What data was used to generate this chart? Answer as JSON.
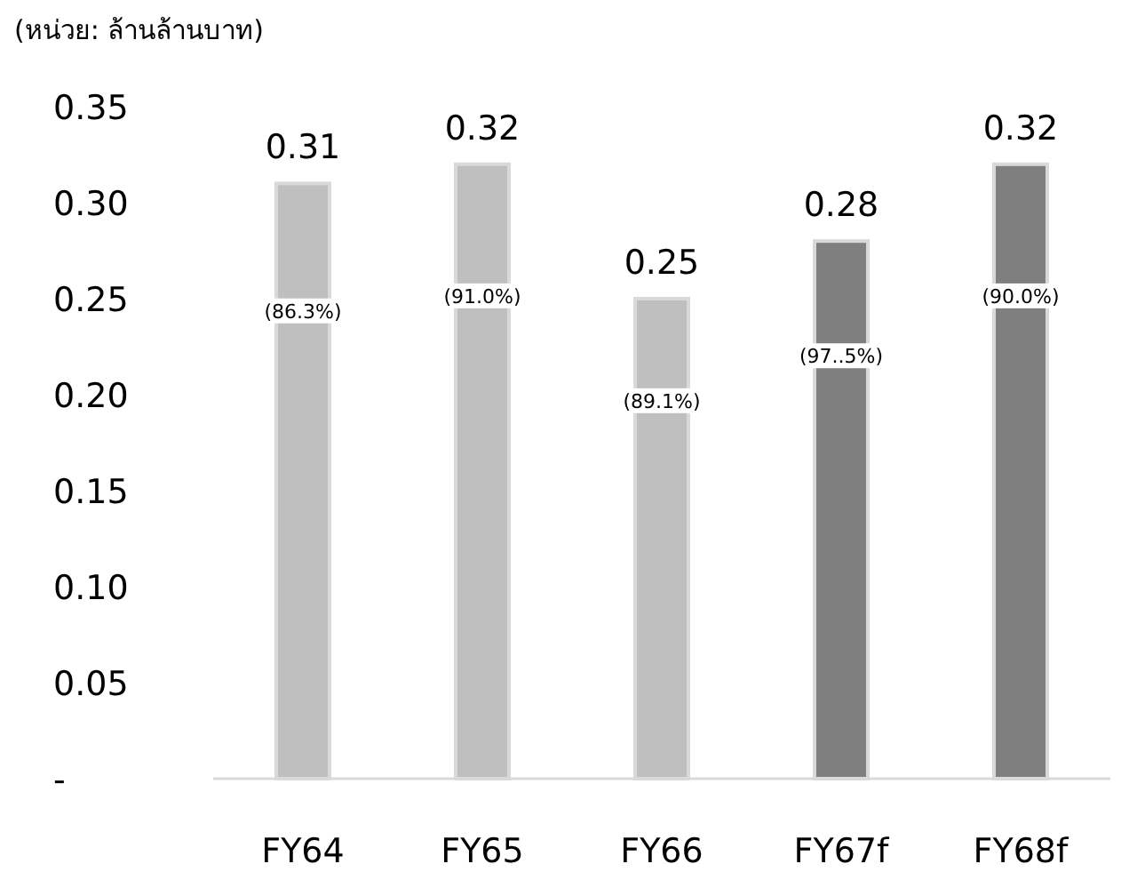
{
  "chart_data": {
    "type": "bar",
    "ylabel": "(หน่วย: ล้านล้านบาท)",
    "categories": [
      "FY64",
      "FY65",
      "FY66",
      "FY67f",
      "FY68f"
    ],
    "values": [
      0.31,
      0.32,
      0.25,
      0.28,
      0.32
    ],
    "colors": [
      "#bfbfbf",
      "#bfbfbf",
      "#bfbfbf",
      "#7f7f7f",
      "#7f7f7f"
    ],
    "ylim": [
      0,
      0.35
    ],
    "yticks": [
      {
        "value": 0,
        "label": "-"
      },
      0.05,
      {
        "value": 0.1,
        "label": "0.10"
      },
      0.15,
      {
        "value": 0.2,
        "label": "0.20"
      },
      0.25,
      {
        "value": 0.3,
        "label": "0.30"
      },
      0.35
    ],
    "data_labels": true,
    "grid": false,
    "annotations": [
      "(86.3%)",
      "(91.0%)",
      "(89.1%)",
      "(97..5%)",
      "(90.0%)"
    ]
  }
}
